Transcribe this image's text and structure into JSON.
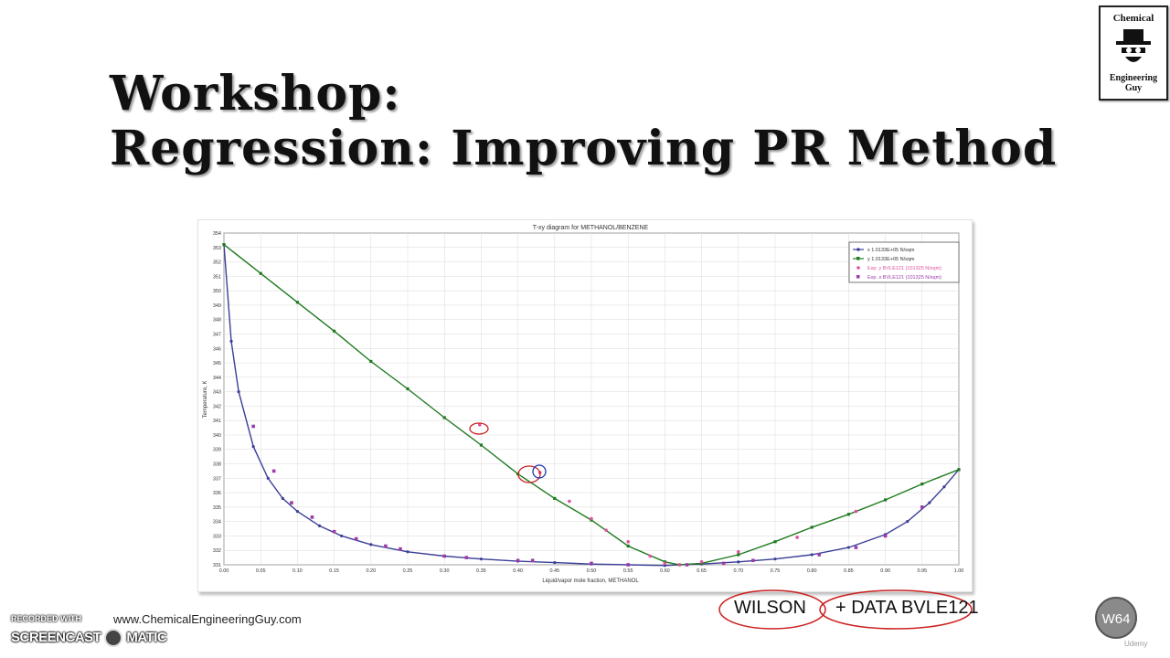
{
  "slide": {
    "title_line1": "Workshop:",
    "title_line2": "Regression: Improving PR Method",
    "logo_top": "Chemical",
    "logo_bottom": "Engineering Guy",
    "footer_url": "www.ChemicalEngineeringGuy.com",
    "recorded_with": "RECORDED WITH",
    "screencast_a": "SCREENCAST",
    "screencast_b": "MATIC",
    "annotation_a": "WILSON",
    "annotation_b": "+ DATA BVLE121",
    "badge": "W64",
    "watermark": "Udemy"
  },
  "colors": {
    "liquid": "#3a3f96",
    "vapor": "#1f7a1f",
    "exp": "#9b3aa8",
    "ink_red": "#cc2020",
    "ink_blue": "#2035b0"
  },
  "chart_data": {
    "type": "line",
    "title": "T-xy diagram for METHANOL/BENZENE",
    "xlabel": "Liquid/vapor mole fraction, METHANOL",
    "ylabel": "Temperature, K",
    "xlim": [
      0,
      1
    ],
    "ylim": [
      331,
      354
    ],
    "xticks": [
      "0.00",
      "0.05",
      "0.10",
      "0.15",
      "0.20",
      "0.25",
      "0.30",
      "0.35",
      "0.40",
      "0.45",
      "0.50",
      "0.55",
      "0.60",
      "0.65",
      "0.70",
      "0.75",
      "0.80",
      "0.85",
      "0.90",
      "0.95",
      "1.00"
    ],
    "yticks": [
      "331",
      "332",
      "333",
      "334",
      "335",
      "336",
      "337",
      "338",
      "339",
      "340",
      "341",
      "342",
      "343",
      "344",
      "345",
      "346",
      "347",
      "348",
      "349",
      "350",
      "351",
      "352",
      "353",
      "354"
    ],
    "grid": true,
    "legend_position": "top-right",
    "series": [
      {
        "name": "x 1.0133E+05 N/sqm",
        "kind": "line",
        "x": [
          0,
          0.01,
          0.02,
          0.04,
          0.06,
          0.08,
          0.1,
          0.13,
          0.16,
          0.2,
          0.25,
          0.3,
          0.35,
          0.4,
          0.45,
          0.5,
          0.55,
          0.6,
          0.62,
          0.65,
          0.7,
          0.75,
          0.8,
          0.85,
          0.9,
          0.93,
          0.96,
          0.98,
          1.0
        ],
        "y": [
          353.2,
          346.5,
          343.0,
          339.2,
          337.0,
          335.6,
          334.7,
          333.7,
          333.0,
          332.4,
          331.9,
          331.6,
          331.4,
          331.25,
          331.15,
          331.05,
          331.0,
          330.95,
          331.0,
          331.05,
          331.2,
          331.4,
          331.7,
          332.2,
          333.1,
          334.0,
          335.3,
          336.4,
          337.6
        ]
      },
      {
        "name": "y 1.0133E+05 N/sqm",
        "kind": "line",
        "x": [
          0,
          0.05,
          0.1,
          0.15,
          0.2,
          0.25,
          0.3,
          0.35,
          0.4,
          0.45,
          0.5,
          0.55,
          0.6,
          0.62,
          0.65,
          0.7,
          0.75,
          0.8,
          0.85,
          0.9,
          0.95,
          1.0
        ],
        "y": [
          353.2,
          351.2,
          349.2,
          347.2,
          345.1,
          343.2,
          341.2,
          339.3,
          337.3,
          335.6,
          334.1,
          332.3,
          331.2,
          331.0,
          331.1,
          331.7,
          332.6,
          333.6,
          334.5,
          335.5,
          336.6,
          337.6
        ]
      },
      {
        "name": "Exp. y BVLE121 (101325 N/sqm)",
        "kind": "points",
        "x": [
          0.348,
          0.43,
          0.47,
          0.5,
          0.52,
          0.55,
          0.58,
          0.6,
          0.62,
          0.65,
          0.7,
          0.78,
          0.86
        ],
        "y": [
          340.7,
          337.4,
          335.4,
          334.2,
          333.4,
          332.6,
          331.6,
          331.1,
          331.0,
          331.2,
          331.9,
          332.9,
          334.7
        ]
      },
      {
        "name": "Exp. x BVLE121 (101325 N/sqm)",
        "kind": "points",
        "x": [
          0.04,
          0.068,
          0.092,
          0.12,
          0.15,
          0.18,
          0.22,
          0.24,
          0.3,
          0.33,
          0.4,
          0.42,
          0.5,
          0.55,
          0.63,
          0.68,
          0.72,
          0.81,
          0.86,
          0.9,
          0.95
        ],
        "y": [
          340.6,
          337.5,
          335.3,
          334.3,
          333.3,
          332.8,
          332.3,
          332.1,
          331.6,
          331.5,
          331.3,
          331.3,
          331.1,
          331.0,
          331.0,
          331.1,
          331.3,
          331.7,
          332.2,
          333.0,
          335.0
        ]
      }
    ]
  }
}
